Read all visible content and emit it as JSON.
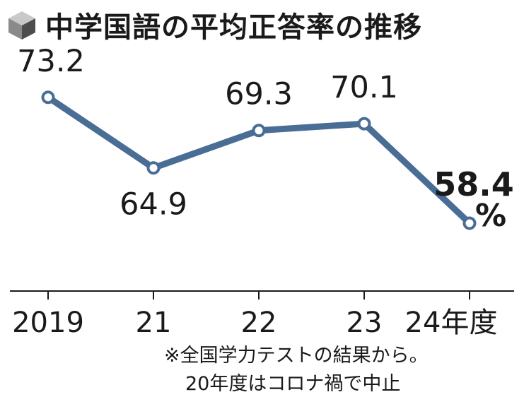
{
  "header": {
    "title": "中学国語の平均正答率の推移",
    "icon": "cube-icon"
  },
  "chart_data": {
    "type": "line",
    "title": "中学国語の平均正答率の推移",
    "categories": [
      "2019",
      "21",
      "22",
      "23",
      "24年度"
    ],
    "values": [
      73.2,
      64.9,
      69.3,
      70.1,
      58.4
    ],
    "value_labels": [
      "73.2",
      "64.9",
      "69.3",
      "70.1",
      "58.4"
    ],
    "last_unit": "%",
    "ylim": [
      52,
      78
    ],
    "grid": false,
    "line_color": "#4a6d96",
    "marker_fill": "#ffffff"
  },
  "footnote": {
    "line1": "※全国学力テストの結果から。",
    "line2": "20年度はコロナ禍で中止"
  }
}
